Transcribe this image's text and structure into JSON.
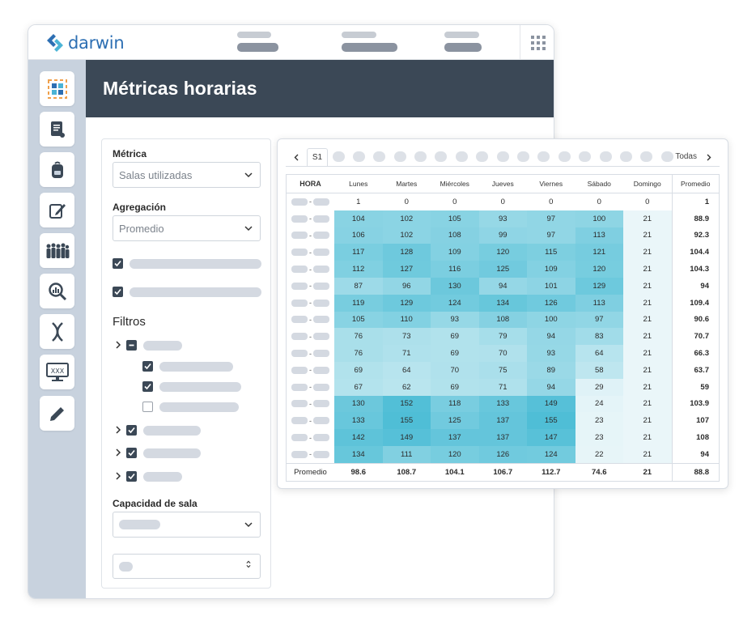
{
  "app": {
    "brand": "darwin",
    "brand_color": "#2d6fb3",
    "header_bg": "#3b4856"
  },
  "sidebar": {
    "items": [
      {
        "icon": "dashboard-icon"
      },
      {
        "icon": "scroll-icon"
      },
      {
        "icon": "backpack-icon"
      },
      {
        "icon": "edit-note-icon"
      },
      {
        "icon": "people-icon"
      },
      {
        "icon": "search-chart-icon"
      },
      {
        "icon": "dna-icon"
      },
      {
        "icon": "monitor-icon"
      },
      {
        "icon": "pencil-icon"
      }
    ]
  },
  "page": {
    "title": "Métricas horarias"
  },
  "filters": {
    "metric_label": "Métrica",
    "metric_value": "Salas utilizadas",
    "aggregation_label": "Agregación",
    "aggregation_value": "Promedio",
    "filters_title": "Filtros",
    "capacity_label": "Capacidad de sala"
  },
  "weeks": {
    "selected": "S1",
    "all_label": "Todas",
    "prev_icon": "chevron-left-icon",
    "next_icon": "chevron-right-icon"
  },
  "table": {
    "headers": [
      "HORA",
      "Lunes",
      "Martes",
      "Miércoles",
      "Jueves",
      "Viernes",
      "Sábado",
      "Domingo",
      "Promedio"
    ],
    "rows": [
      {
        "v": [
          1,
          0,
          0,
          0,
          0,
          0,
          0
        ],
        "avg": "1"
      },
      {
        "v": [
          104,
          102,
          105,
          93,
          97,
          100,
          21
        ],
        "avg": "88.9"
      },
      {
        "v": [
          106,
          102,
          108,
          99,
          97,
          113,
          21
        ],
        "avg": "92.3"
      },
      {
        "v": [
          117,
          128,
          109,
          120,
          115,
          121,
          21
        ],
        "avg": "104.4"
      },
      {
        "v": [
          112,
          127,
          116,
          125,
          109,
          120,
          21
        ],
        "avg": "104.3"
      },
      {
        "v": [
          87,
          96,
          130,
          94,
          101,
          129,
          21
        ],
        "avg": "94"
      },
      {
        "v": [
          119,
          129,
          124,
          134,
          126,
          113,
          21
        ],
        "avg": "109.4"
      },
      {
        "v": [
          105,
          110,
          93,
          108,
          100,
          97,
          21
        ],
        "avg": "90.6"
      },
      {
        "v": [
          76,
          73,
          69,
          79,
          94,
          83,
          21
        ],
        "avg": "70.7"
      },
      {
        "v": [
          76,
          71,
          69,
          70,
          93,
          64,
          21
        ],
        "avg": "66.3"
      },
      {
        "v": [
          69,
          64,
          70,
          75,
          89,
          58,
          21
        ],
        "avg": "63.7"
      },
      {
        "v": [
          67,
          62,
          69,
          71,
          94,
          29,
          21
        ],
        "avg": "59"
      },
      {
        "v": [
          130,
          152,
          118,
          133,
          149,
          24,
          21
        ],
        "avg": "103.9"
      },
      {
        "v": [
          133,
          155,
          125,
          137,
          155,
          23,
          21
        ],
        "avg": "107"
      },
      {
        "v": [
          142,
          149,
          137,
          137,
          147,
          23,
          21
        ],
        "avg": "108"
      },
      {
        "v": [
          134,
          111,
          120,
          126,
          124,
          22,
          21
        ],
        "avg": "94"
      }
    ],
    "footer": {
      "label": "Promedio",
      "values": [
        "98.6",
        "108.7",
        "104.1",
        "106.7",
        "112.7",
        "74.6",
        "21",
        "88.8"
      ]
    }
  }
}
